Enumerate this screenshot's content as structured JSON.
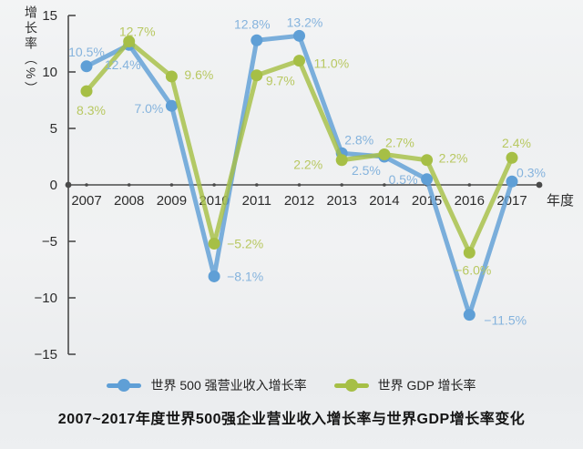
{
  "chart_data": {
    "type": "line",
    "title": "2007~2017年度世界500强企业营业收入增长率与世界GDP增长率变化",
    "ylabel": "增长率（%）",
    "xlabel": "年度",
    "ylim": [
      -15,
      15
    ],
    "yticks": [
      15,
      10,
      5,
      0,
      -5,
      -10,
      -15
    ],
    "grid": false,
    "legend_position": "bottom",
    "x": [
      2007,
      2008,
      2009,
      2010,
      2011,
      2012,
      2013,
      2014,
      2015,
      2016,
      2017
    ],
    "series": [
      {
        "name": "世界 500 强营业收入增长率",
        "color": "#5f9fd6",
        "label_color": "#85b3dd",
        "values": [
          10.5,
          12.4,
          7.0,
          -8.1,
          12.8,
          13.2,
          2.8,
          2.5,
          0.5,
          -11.5,
          0.3
        ]
      },
      {
        "name": "世界 GDP 增长率",
        "color": "#a6bf46",
        "label_color": "#b8c861",
        "values": [
          8.3,
          12.7,
          9.6,
          -5.2,
          9.7,
          11.0,
          2.2,
          2.7,
          2.2,
          -6.0,
          2.4
        ]
      }
    ],
    "axis_color": "#4a4a4a",
    "tick_label_color": "#2c2c2c"
  }
}
